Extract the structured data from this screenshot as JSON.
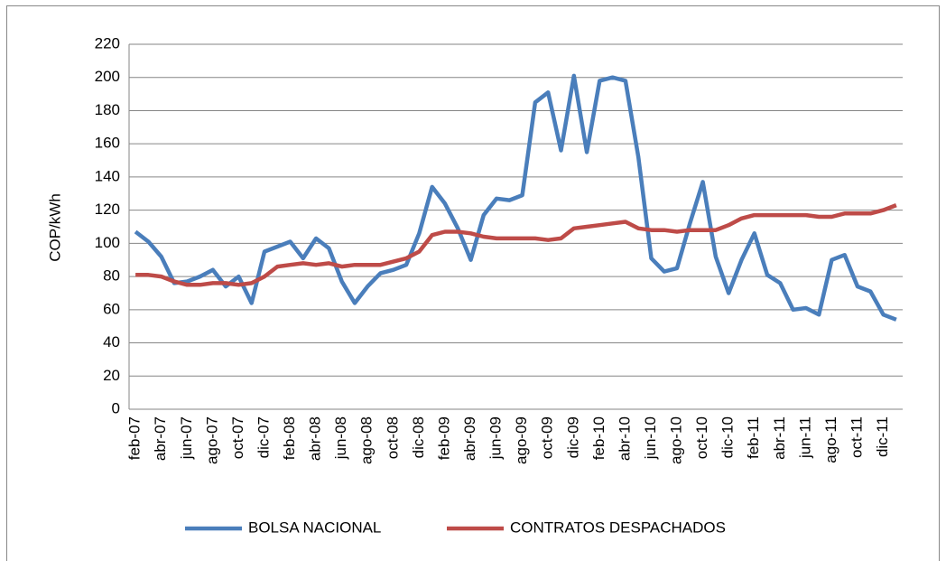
{
  "chart_data": {
    "type": "line",
    "y_label": "COP/kWh",
    "categories": [
      "feb-07",
      null,
      "abr-07",
      null,
      "jun-07",
      null,
      "ago-07",
      null,
      "oct-07",
      null,
      "dic-07",
      null,
      "feb-08",
      null,
      "abr-08",
      null,
      "jun-08",
      null,
      "ago-08",
      null,
      "oct-08",
      null,
      "dic-08",
      null,
      "feb-09",
      null,
      "abr-09",
      null,
      "jun-09",
      null,
      "ago-09",
      null,
      "oct-09",
      null,
      "dic-09",
      null,
      "feb-10",
      null,
      "abr-10",
      null,
      "jun-10",
      null,
      "ago-10",
      null,
      "oct-10",
      null,
      "dic-10",
      null,
      "feb-11",
      null,
      "abr-11",
      null,
      "jun-11",
      null,
      "ago-11",
      null,
      "oct-11",
      null,
      "dic-11",
      null
    ],
    "series": [
      {
        "name": "BOLSA NACIONAL",
        "color": "#4a7ebb",
        "values": [
          107,
          101,
          92,
          76,
          77,
          80,
          84,
          74,
          80,
          64,
          95,
          98,
          101,
          91,
          103,
          97,
          77,
          64,
          74,
          82,
          84,
          87,
          106,
          134,
          124,
          109,
          90,
          117,
          127,
          126,
          129,
          185,
          191,
          156,
          201,
          155,
          198,
          200,
          198,
          152,
          91,
          83,
          85,
          112,
          137,
          92,
          70,
          90,
          106,
          81,
          76,
          60,
          61,
          57,
          90,
          93,
          74,
          71,
          57,
          54
        ]
      },
      {
        "name": "CONTRATOS DESPACHADOS",
        "color": "#be4b48",
        "values": [
          81,
          81,
          80,
          77,
          75,
          75,
          76,
          76,
          75,
          76,
          80,
          86,
          87,
          88,
          87,
          88,
          86,
          87,
          87,
          87,
          89,
          91,
          95,
          105,
          107,
          107,
          106,
          104,
          103,
          103,
          103,
          103,
          102,
          103,
          109,
          110,
          111,
          112,
          113,
          109,
          108,
          108,
          107,
          108,
          108,
          108,
          111,
          115,
          117,
          117,
          117,
          117,
          117,
          116,
          116,
          118,
          118,
          118,
          120,
          123
        ]
      }
    ],
    "ylim": [
      0,
      220
    ],
    "yticks": [
      0,
      20,
      40,
      60,
      80,
      100,
      120,
      140,
      160,
      180,
      200,
      220
    ],
    "grid": true,
    "legend": "bottom"
  }
}
